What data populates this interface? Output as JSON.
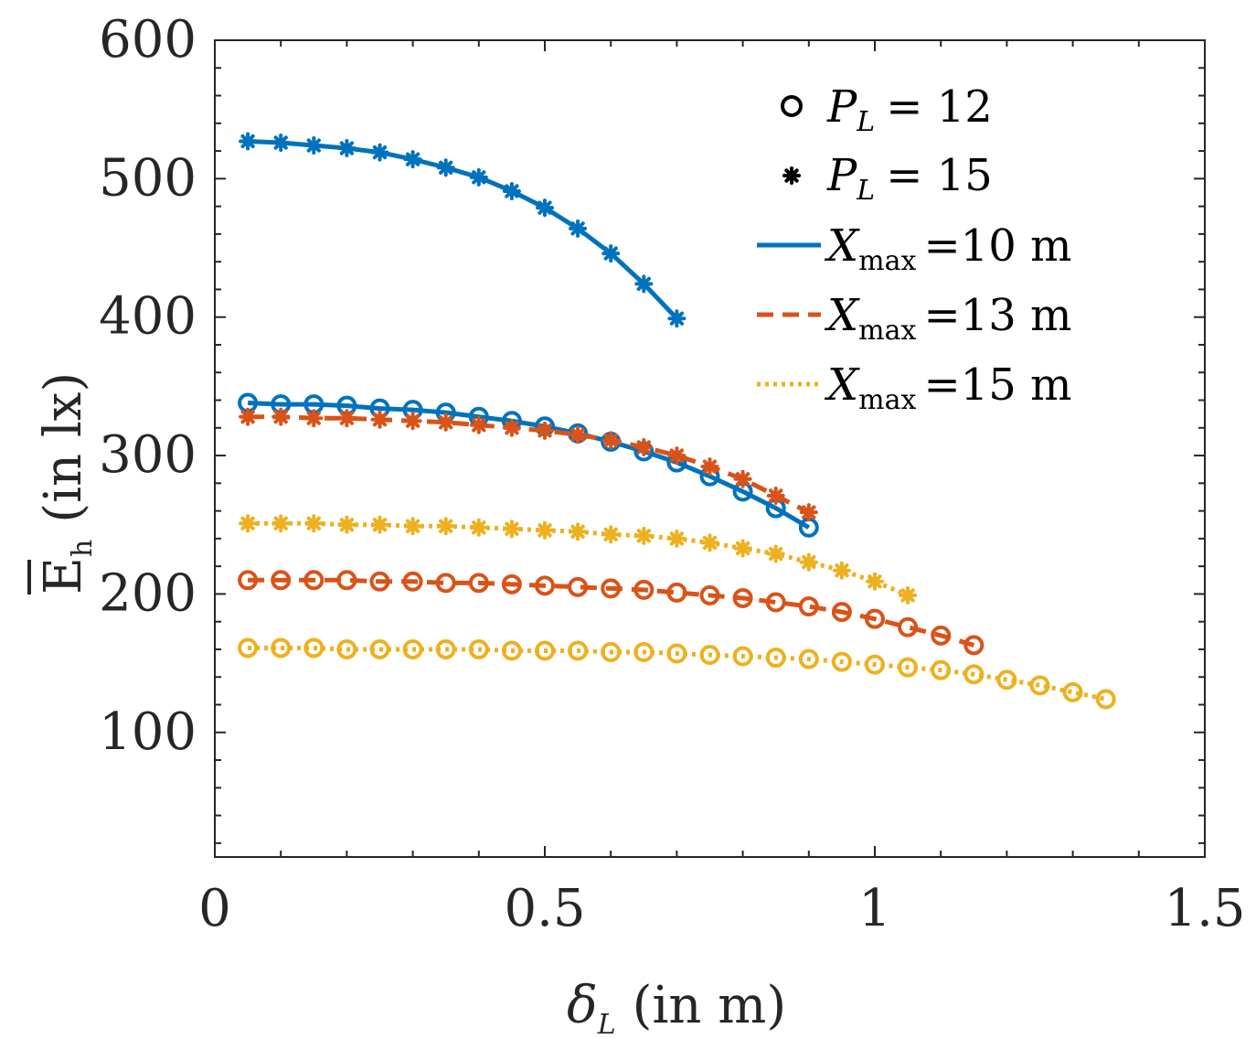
{
  "chart_data": {
    "type": "line",
    "xlabel": "δ_L (in m)",
    "xlabel_main": "δ",
    "xlabel_sub": "L",
    "xlabel_rest": "(in m)",
    "ylabel": "E_h (in lx)",
    "ylabel_main": "E",
    "ylabel_sub": "h",
    "ylabel_rest": "(in lx)",
    "xlim": [
      0,
      1.5
    ],
    "ylim": [
      10,
      600
    ],
    "xticks": [
      0,
      0.5,
      1,
      1.5
    ],
    "xtick_labels": [
      "0",
      "0.5",
      "1",
      "1.5"
    ],
    "yticks": [
      100,
      200,
      300,
      400,
      500,
      600
    ],
    "ytick_labels": [
      "100",
      "200",
      "300",
      "400",
      "500",
      "600"
    ],
    "grid": false,
    "legend_placement": "top-right",
    "legend": {
      "marker_entries": [
        {
          "marker": "circle",
          "var": "P",
          "sub": "L",
          "rest": "= 12"
        },
        {
          "marker": "asterisk",
          "var": "P",
          "sub": "L",
          "rest": "= 15"
        }
      ],
      "line_entries": [
        {
          "style": "solid",
          "color": "#0072BD",
          "var": "X",
          "sub": "max",
          "rest": "=10 m"
        },
        {
          "style": "dashed",
          "color": "#D95319",
          "var": "X",
          "sub": "max",
          "rest": "=13 m"
        },
        {
          "style": "dotted",
          "color": "#EDB120",
          "var": "X",
          "sub": "max",
          "rest": "=15 m"
        }
      ]
    },
    "series": [
      {
        "name": "X_max=10 m, P_L=15",
        "color": "#0072BD",
        "style": "solid",
        "marker": "asterisk",
        "x": [
          0.05,
          0.1,
          0.15,
          0.2,
          0.25,
          0.3,
          0.35,
          0.4,
          0.45,
          0.5,
          0.55,
          0.6,
          0.65,
          0.7
        ],
        "y": [
          527,
          526,
          524,
          522,
          519,
          514,
          508,
          501,
          491,
          479,
          464,
          446,
          424,
          399
        ]
      },
      {
        "name": "X_max=10 m, P_L=12",
        "color": "#0072BD",
        "style": "solid",
        "marker": "circle",
        "x": [
          0.05,
          0.1,
          0.15,
          0.2,
          0.25,
          0.3,
          0.35,
          0.4,
          0.45,
          0.5,
          0.55,
          0.6,
          0.65,
          0.7,
          0.75,
          0.8,
          0.85,
          0.9
        ],
        "y": [
          338,
          337,
          337,
          336,
          334,
          333,
          331,
          328,
          325,
          321,
          316,
          310,
          303,
          295,
          285,
          274,
          262,
          248
        ]
      },
      {
        "name": "X_max=13 m, P_L=15",
        "color": "#D95319",
        "style": "dashed",
        "marker": "asterisk",
        "x": [
          0.05,
          0.1,
          0.15,
          0.2,
          0.25,
          0.3,
          0.35,
          0.4,
          0.45,
          0.5,
          0.55,
          0.6,
          0.65,
          0.7,
          0.75,
          0.8,
          0.85,
          0.9
        ],
        "y": [
          328,
          328,
          327,
          327,
          326,
          325,
          324,
          322,
          320,
          318,
          315,
          311,
          306,
          300,
          292,
          283,
          271,
          259
        ]
      },
      {
        "name": "X_max=15 m, P_L=15",
        "color": "#EDB120",
        "style": "dotted",
        "marker": "asterisk",
        "x": [
          0.05,
          0.1,
          0.15,
          0.2,
          0.25,
          0.3,
          0.35,
          0.4,
          0.45,
          0.5,
          0.55,
          0.6,
          0.65,
          0.7,
          0.75,
          0.8,
          0.85,
          0.9,
          0.95,
          1.0,
          1.05
        ],
        "y": [
          251,
          251,
          251,
          250,
          250,
          249,
          249,
          248,
          247,
          246,
          245,
          243,
          242,
          240,
          237,
          233,
          229,
          223,
          217,
          209,
          199
        ]
      },
      {
        "name": "X_max=13 m, P_L=12",
        "color": "#D95319",
        "style": "dashed",
        "marker": "circle",
        "x": [
          0.05,
          0.1,
          0.15,
          0.2,
          0.25,
          0.3,
          0.35,
          0.4,
          0.45,
          0.5,
          0.55,
          0.6,
          0.65,
          0.7,
          0.75,
          0.8,
          0.85,
          0.9,
          0.95,
          1.0,
          1.05,
          1.1,
          1.15
        ],
        "y": [
          210,
          210,
          210,
          210,
          209,
          209,
          208,
          208,
          207,
          206,
          205,
          204,
          203,
          201,
          199,
          197,
          194,
          191,
          187,
          182,
          176,
          170,
          163
        ]
      },
      {
        "name": "X_max=15 m, P_L=12",
        "color": "#EDB120",
        "style": "dotted",
        "marker": "circle",
        "x": [
          0.05,
          0.1,
          0.15,
          0.2,
          0.25,
          0.3,
          0.35,
          0.4,
          0.45,
          0.5,
          0.55,
          0.6,
          0.65,
          0.7,
          0.75,
          0.8,
          0.85,
          0.9,
          0.95,
          1.0,
          1.05,
          1.1,
          1.15,
          1.2,
          1.25,
          1.3,
          1.35
        ],
        "y": [
          161,
          161,
          161,
          160,
          160,
          160,
          160,
          160,
          159,
          159,
          159,
          158,
          158,
          157,
          156,
          155,
          154,
          153,
          151,
          149,
          147,
          145,
          142,
          138,
          134,
          129,
          124
        ]
      }
    ]
  }
}
